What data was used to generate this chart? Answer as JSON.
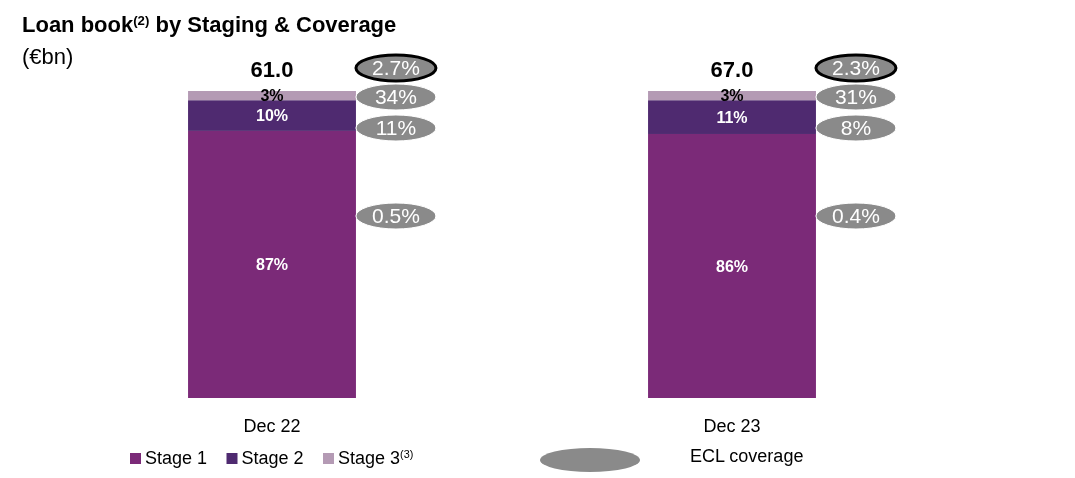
{
  "chart_data": {
    "type": "bar",
    "title": "Loan book$^{(2)}$ by Staging & Coverage",
    "subtitle": "(€bn)",
    "categories": [
      "Dec 22",
      "Dec 23"
    ],
    "stacked": true,
    "legend": "bottom",
    "series": [
      {
        "name": "Stage 1",
        "color": "#7b2a78",
        "values": [
          87,
          86
        ],
        "value_labels": [
          "87%",
          "86%"
        ]
      },
      {
        "name": "Stage 2",
        "color": "#4f2a70",
        "values": [
          10,
          11
        ],
        "value_labels": [
          "10%",
          "11%"
        ]
      },
      {
        "name": "Stage 3$^{(3)}$",
        "color": "#b49ab4",
        "values": [
          3,
          3
        ],
        "value_labels": [
          "3%",
          "3%"
        ]
      }
    ],
    "annotations": [
      "61.0",
      "67.0",
      "2.7%",
      "34%",
      "11%",
      "0.5%",
      "2.3%",
      "31%",
      "8%",
      "0.4%",
      "ECL coverage"
    ]
  }
}
